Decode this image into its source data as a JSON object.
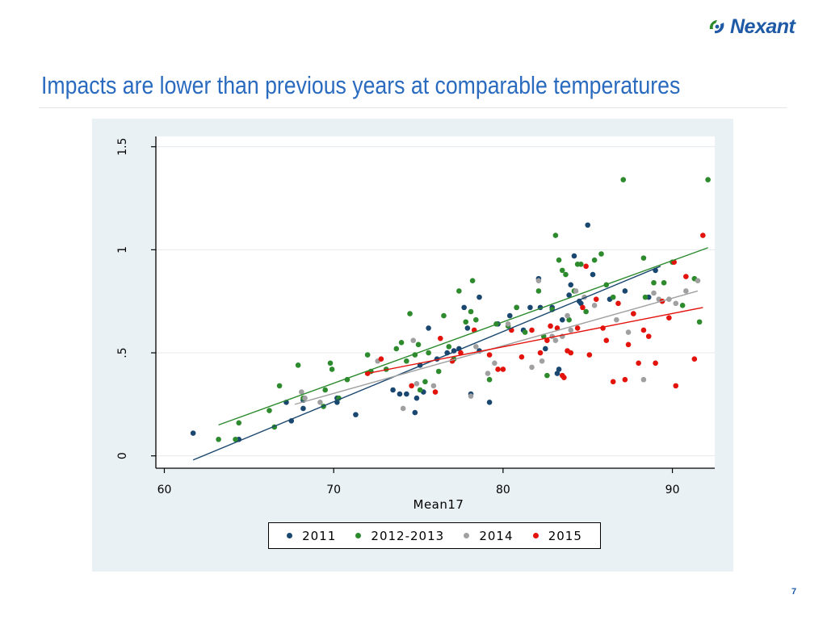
{
  "header": {
    "logo_text": "Nexant",
    "title": "Impacts are lower than previous years at comparable temperatures",
    "logo_color": "#1f5aa6",
    "title_color": "#2a6bbf"
  },
  "page_number": "7",
  "chart_data": {
    "type": "scatter",
    "title": "",
    "xlabel": "Mean17",
    "ylabel": "",
    "xlim": [
      59.5,
      92.5
    ],
    "ylim": [
      -0.06,
      1.55
    ],
    "x_ticks": [
      60,
      70,
      80,
      90
    ],
    "x_tick_labels": [
      "60",
      "70",
      "80",
      "90"
    ],
    "y_ticks": [
      0,
      0.5,
      1,
      1.5
    ],
    "y_tick_labels": [
      "0",
      ".5",
      "1",
      "1.5"
    ],
    "grid": "horizontal",
    "legend_position": "bottom",
    "series": [
      {
        "name": "2011",
        "color": "#1a476f",
        "points": [
          [
            61.7,
            0.11
          ],
          [
            64.4,
            0.08
          ],
          [
            67.5,
            0.17
          ],
          [
            68.2,
            0.23
          ],
          [
            68.2,
            0.27
          ],
          [
            67.2,
            0.26
          ],
          [
            70.2,
            0.28
          ],
          [
            70.2,
            0.26
          ],
          [
            71.3,
            0.2
          ],
          [
            73.5,
            0.32
          ],
          [
            73.9,
            0.3
          ],
          [
            74.3,
            0.3
          ],
          [
            74.8,
            0.21
          ],
          [
            75.1,
            0.44
          ],
          [
            75.3,
            0.31
          ],
          [
            74.9,
            0.28
          ],
          [
            75.6,
            0.62
          ],
          [
            76.1,
            0.47
          ],
          [
            76.7,
            0.5
          ],
          [
            77.4,
            0.52
          ],
          [
            77.1,
            0.51
          ],
          [
            77.7,
            0.72
          ],
          [
            77.9,
            0.62
          ],
          [
            78.1,
            0.3
          ],
          [
            78.6,
            0.77
          ],
          [
            78.6,
            0.51
          ],
          [
            79.2,
            0.26
          ],
          [
            79.7,
            0.64
          ],
          [
            80.4,
            0.68
          ],
          [
            80.8,
            0.72
          ],
          [
            81.2,
            0.61
          ],
          [
            81.6,
            0.72
          ],
          [
            82.1,
            0.86
          ],
          [
            82.2,
            0.72
          ],
          [
            82.5,
            0.52
          ],
          [
            82.9,
            0.72
          ],
          [
            83.2,
            0.4
          ],
          [
            83.3,
            0.42
          ],
          [
            83.5,
            0.66
          ],
          [
            83.9,
            0.78
          ],
          [
            84.0,
            0.83
          ],
          [
            84.2,
            0.97
          ],
          [
            84.5,
            0.75
          ],
          [
            84.6,
            0.74
          ],
          [
            85.0,
            1.12
          ],
          [
            85.3,
            0.88
          ],
          [
            86.3,
            0.76
          ],
          [
            87.2,
            0.8
          ],
          [
            88.6,
            0.77
          ],
          [
            89.0,
            0.9
          ]
        ],
        "fit": [
          [
            61.7,
            -0.02
          ],
          [
            89.3,
            0.92
          ]
        ]
      },
      {
        "name": "2012-2013",
        "color": "#2d8a2d",
        "points": [
          [
            63.2,
            0.08
          ],
          [
            64.2,
            0.08
          ],
          [
            64.4,
            0.16
          ],
          [
            66.2,
            0.22
          ],
          [
            66.5,
            0.14
          ],
          [
            66.8,
            0.34
          ],
          [
            67.9,
            0.44
          ],
          [
            68.2,
            0.28
          ],
          [
            69.4,
            0.24
          ],
          [
            69.5,
            0.32
          ],
          [
            69.8,
            0.45
          ],
          [
            69.9,
            0.42
          ],
          [
            70.3,
            0.28
          ],
          [
            70.8,
            0.37
          ],
          [
            72.0,
            0.49
          ],
          [
            72.2,
            0.41
          ],
          [
            73.1,
            0.42
          ],
          [
            73.7,
            0.52
          ],
          [
            74.0,
            0.55
          ],
          [
            74.3,
            0.46
          ],
          [
            74.5,
            0.69
          ],
          [
            74.8,
            0.49
          ],
          [
            75.0,
            0.54
          ],
          [
            75.1,
            0.32
          ],
          [
            75.4,
            0.36
          ],
          [
            75.6,
            0.5
          ],
          [
            76.2,
            0.41
          ],
          [
            76.5,
            0.68
          ],
          [
            76.8,
            0.53
          ],
          [
            77.1,
            0.47
          ],
          [
            77.4,
            0.8
          ],
          [
            77.8,
            0.65
          ],
          [
            78.1,
            0.7
          ],
          [
            78.2,
            0.85
          ],
          [
            78.4,
            0.66
          ],
          [
            79.2,
            0.37
          ],
          [
            79.6,
            0.64
          ],
          [
            80.3,
            0.63
          ],
          [
            80.8,
            0.72
          ],
          [
            81.3,
            0.6
          ],
          [
            82.1,
            0.8
          ],
          [
            82.4,
            0.58
          ],
          [
            82.6,
            0.39
          ],
          [
            82.9,
            0.71
          ],
          [
            83.1,
            1.07
          ],
          [
            83.3,
            0.95
          ],
          [
            83.5,
            0.9
          ],
          [
            83.7,
            0.88
          ],
          [
            83.9,
            0.66
          ],
          [
            84.2,
            0.8
          ],
          [
            84.4,
            0.93
          ],
          [
            84.6,
            0.93
          ],
          [
            84.9,
            0.7
          ],
          [
            85.4,
            0.95
          ],
          [
            85.8,
            0.98
          ],
          [
            86.1,
            0.83
          ],
          [
            86.5,
            0.77
          ],
          [
            87.1,
            1.34
          ],
          [
            88.3,
            0.96
          ],
          [
            88.4,
            0.77
          ],
          [
            88.9,
            0.84
          ],
          [
            89.5,
            0.84
          ],
          [
            90.0,
            0.94
          ],
          [
            90.6,
            0.73
          ],
          [
            91.3,
            0.86
          ],
          [
            91.6,
            0.65
          ],
          [
            92.1,
            1.34
          ]
        ],
        "fit": [
          [
            63.2,
            0.15
          ],
          [
            92.1,
            1.01
          ]
        ]
      },
      {
        "name": "2014",
        "color": "#a0a0a0",
        "points": [
          [
            68.1,
            0.31
          ],
          [
            68.3,
            0.28
          ],
          [
            69.2,
            0.26
          ],
          [
            72.6,
            0.46
          ],
          [
            74.1,
            0.23
          ],
          [
            74.7,
            0.56
          ],
          [
            74.9,
            0.35
          ],
          [
            75.9,
            0.34
          ],
          [
            78.1,
            0.29
          ],
          [
            78.4,
            0.53
          ],
          [
            79.1,
            0.4
          ],
          [
            79.5,
            0.45
          ],
          [
            80.3,
            0.64
          ],
          [
            81.7,
            0.43
          ],
          [
            82.1,
            0.85
          ],
          [
            82.3,
            0.46
          ],
          [
            82.9,
            0.58
          ],
          [
            83.1,
            0.56
          ],
          [
            83.5,
            0.58
          ],
          [
            83.8,
            0.68
          ],
          [
            84.0,
            0.61
          ],
          [
            84.3,
            0.8
          ],
          [
            84.8,
            0.77
          ],
          [
            85.4,
            0.73
          ],
          [
            86.7,
            0.66
          ],
          [
            87.4,
            0.6
          ],
          [
            87.7,
            0.69
          ],
          [
            88.3,
            0.37
          ],
          [
            88.9,
            0.79
          ],
          [
            89.2,
            0.76
          ],
          [
            89.8,
            0.76
          ],
          [
            90.2,
            0.74
          ],
          [
            90.8,
            0.8
          ],
          [
            91.5,
            0.85
          ]
        ],
        "fit": [
          [
            67.7,
            0.25
          ],
          [
            91.5,
            0.8
          ]
        ]
      },
      {
        "name": "2015",
        "color": "#e3120b",
        "points": [
          [
            72.0,
            0.4
          ],
          [
            72.8,
            0.47
          ],
          [
            74.6,
            0.34
          ],
          [
            76.0,
            0.31
          ],
          [
            76.3,
            0.57
          ],
          [
            77.0,
            0.46
          ],
          [
            77.5,
            0.5
          ],
          [
            78.3,
            0.61
          ],
          [
            79.2,
            0.49
          ],
          [
            79.7,
            0.42
          ],
          [
            80.0,
            0.42
          ],
          [
            80.5,
            0.61
          ],
          [
            81.1,
            0.48
          ],
          [
            81.7,
            0.61
          ],
          [
            82.2,
            0.5
          ],
          [
            82.6,
            0.56
          ],
          [
            82.8,
            0.63
          ],
          [
            83.2,
            0.62
          ],
          [
            83.5,
            0.39
          ],
          [
            83.6,
            0.38
          ],
          [
            83.8,
            0.51
          ],
          [
            84.0,
            0.5
          ],
          [
            84.4,
            0.62
          ],
          [
            84.7,
            0.72
          ],
          [
            84.9,
            0.92
          ],
          [
            85.1,
            0.49
          ],
          [
            85.5,
            0.76
          ],
          [
            85.9,
            0.62
          ],
          [
            86.1,
            0.56
          ],
          [
            86.5,
            0.36
          ],
          [
            86.8,
            0.74
          ],
          [
            87.2,
            0.37
          ],
          [
            87.4,
            0.54
          ],
          [
            87.7,
            0.69
          ],
          [
            88.0,
            0.45
          ],
          [
            88.3,
            0.61
          ],
          [
            88.6,
            0.58
          ],
          [
            89.0,
            0.45
          ],
          [
            89.4,
            0.75
          ],
          [
            89.8,
            0.67
          ],
          [
            90.1,
            0.94
          ],
          [
            90.2,
            0.34
          ],
          [
            90.8,
            0.87
          ],
          [
            91.3,
            0.47
          ],
          [
            91.8,
            1.07
          ]
        ],
        "fit": [
          [
            72.0,
            0.4
          ],
          [
            91.8,
            0.72
          ]
        ]
      }
    ]
  }
}
